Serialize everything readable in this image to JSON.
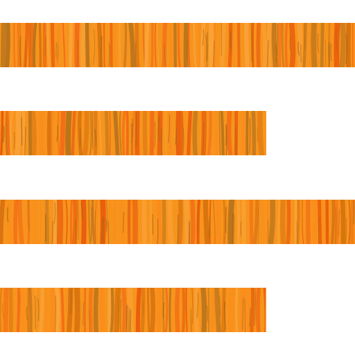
{
  "icon": {
    "name": "text-align-left-icon",
    "line_count": 4,
    "palette": {
      "background": "#ffffff",
      "base": "#f7941d",
      "stripes": [
        "#f26a16",
        "#e85a0c",
        "#f9a33a",
        "#d9730f",
        "#b9741c",
        "#fb8c1c"
      ]
    }
  }
}
